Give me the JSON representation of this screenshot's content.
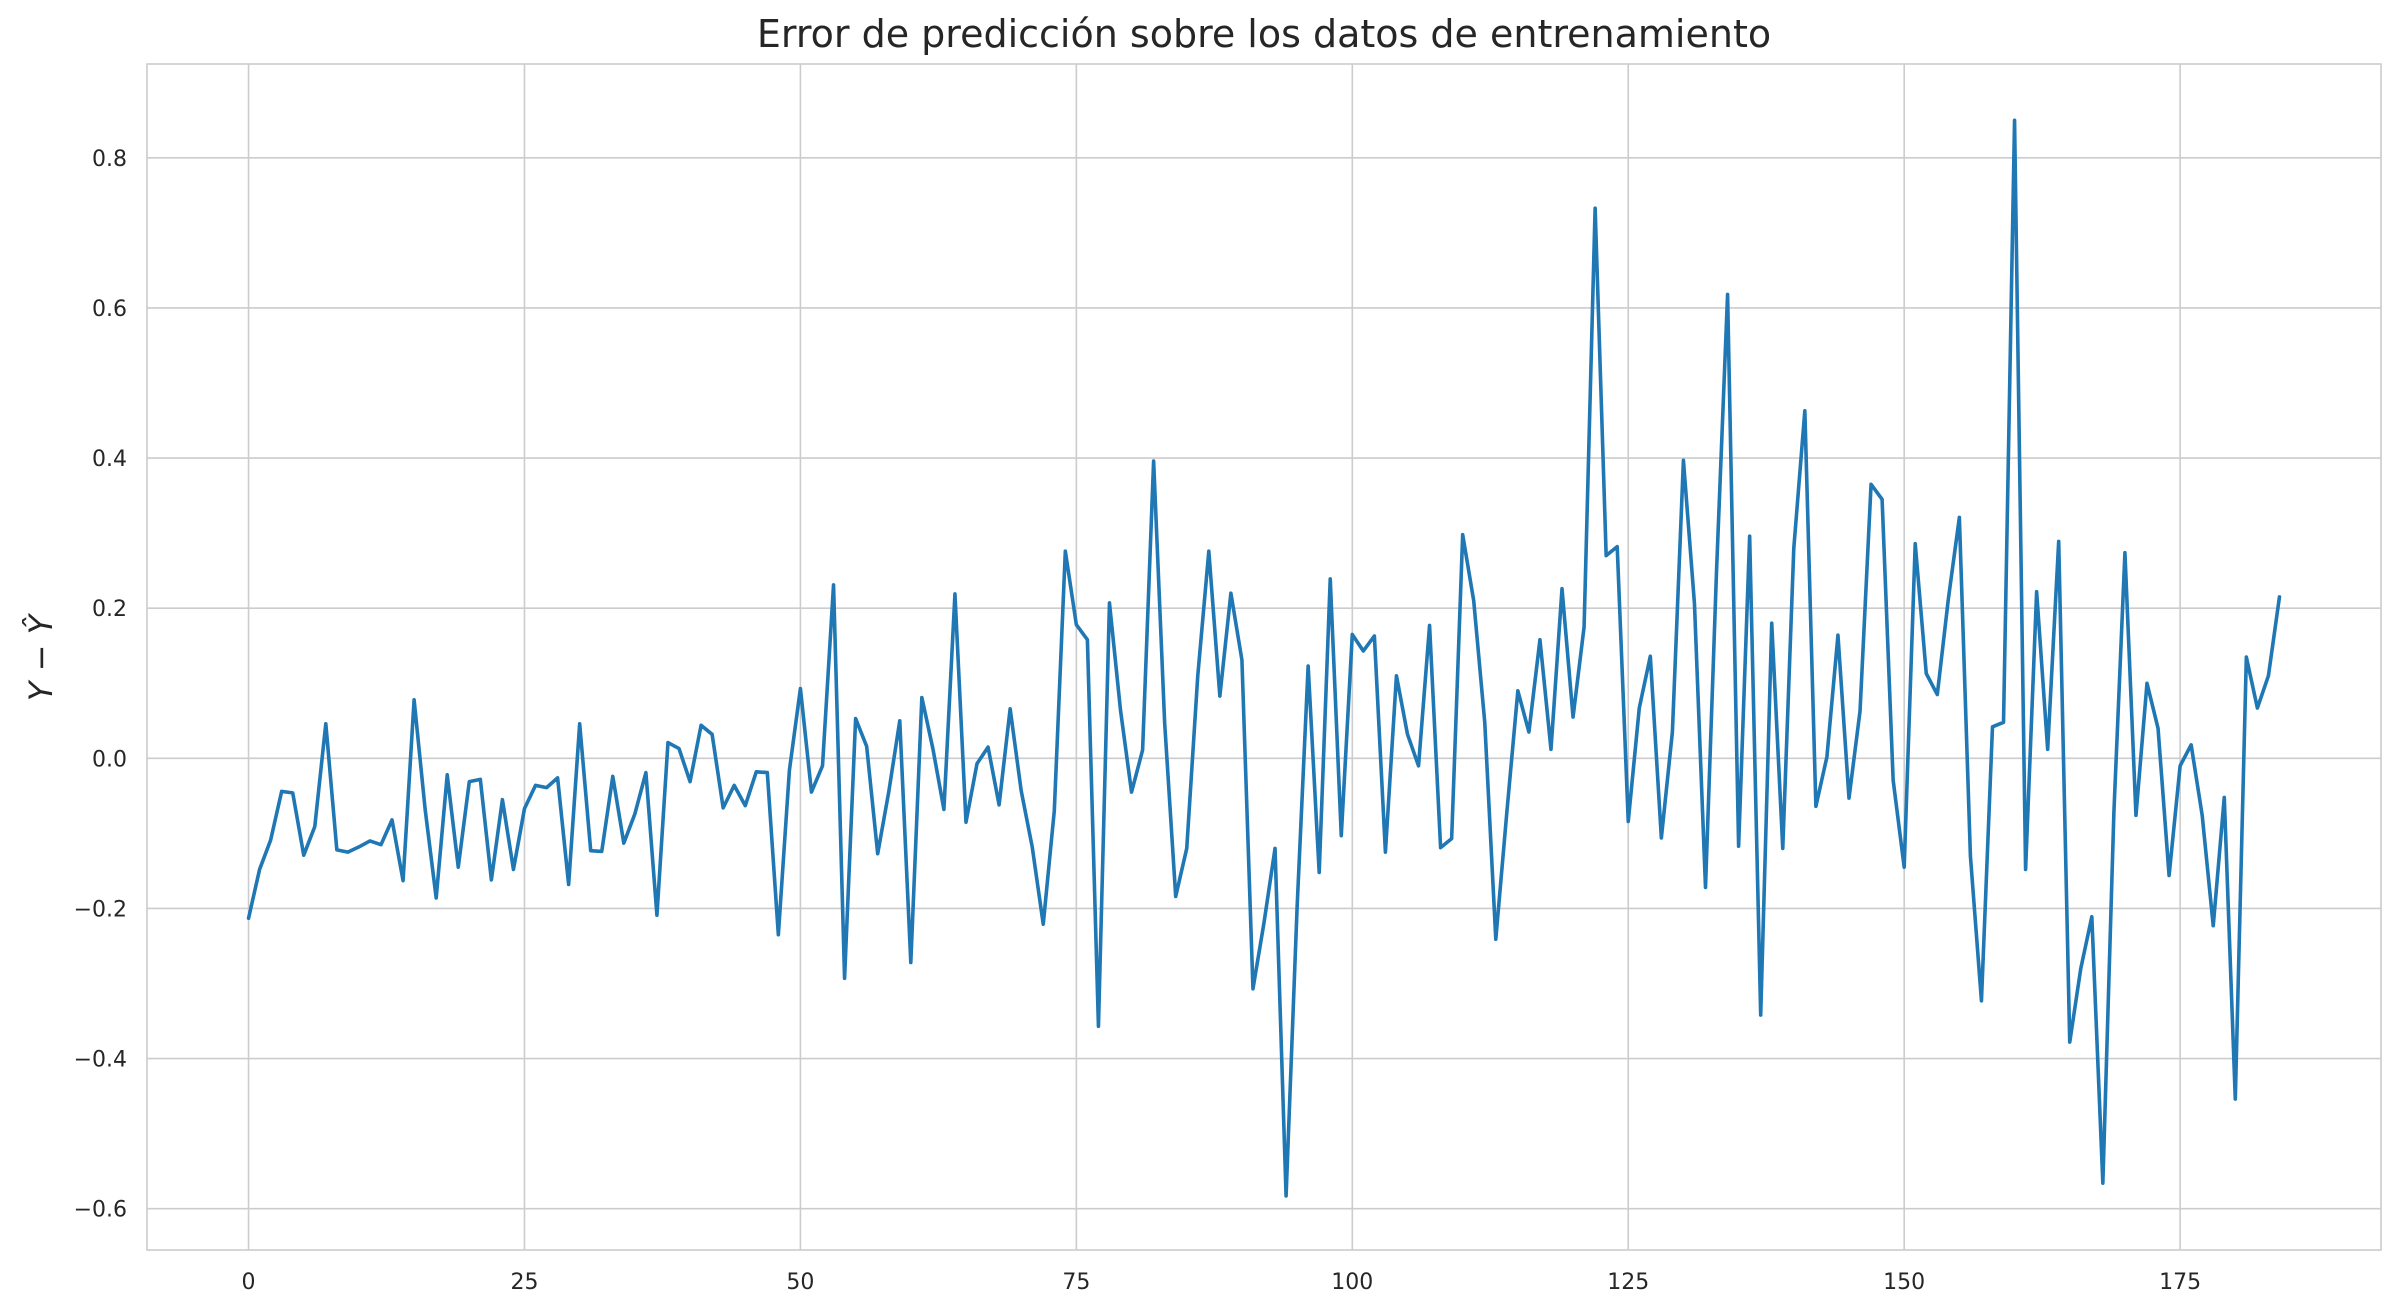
{
  "chart_data": {
    "type": "line",
    "title": "Error de predicción sobre los datos de entrenamiento",
    "xlabel": "",
    "ylabel": "Y − Ŷ",
    "xlim": [
      -9.2,
      193.2
    ],
    "ylim": [
      -0.655,
      0.925
    ],
    "xticks": [
      0,
      25,
      50,
      75,
      100,
      125,
      150,
      175
    ],
    "xtick_labels": [
      "0",
      "25",
      "50",
      "75",
      "100",
      "125",
      "150",
      "175"
    ],
    "yticks": [
      -0.6,
      -0.4,
      -0.2,
      0.0,
      0.2,
      0.4,
      0.6,
      0.8
    ],
    "ytick_labels": [
      "−0.6",
      "−0.4",
      "−0.2",
      "0.0",
      "0.2",
      "0.4",
      "0.6",
      "0.8"
    ],
    "grid": true,
    "colors": {
      "line": "#1f77b4",
      "grid": "#cccccc",
      "background": "#ffffff"
    },
    "series": [
      {
        "x_start": 0,
        "x_step": 1,
        "values": [
          -0.213,
          -0.148,
          -0.109,
          -0.044,
          -0.046,
          -0.129,
          -0.091,
          0.046,
          -0.122,
          -0.125,
          -0.118,
          -0.11,
          -0.115,
          -0.082,
          -0.163,
          0.078,
          -0.068,
          -0.186,
          -0.022,
          -0.145,
          -0.031,
          -0.028,
          -0.162,
          -0.055,
          -0.148,
          -0.067,
          -0.036,
          -0.039,
          -0.026,
          -0.168,
          0.046,
          -0.123,
          -0.124,
          -0.024,
          -0.113,
          -0.074,
          -0.019,
          -0.209,
          0.021,
          0.013,
          -0.031,
          0.044,
          0.032,
          -0.066,
          -0.036,
          -0.063,
          -0.018,
          -0.019,
          -0.235,
          -0.016,
          0.093,
          -0.045,
          -0.01,
          0.231,
          -0.293,
          0.053,
          0.016,
          -0.127,
          -0.045,
          0.05,
          -0.272,
          0.081,
          0.013,
          -0.068,
          0.219,
          -0.085,
          -0.007,
          0.015,
          -0.062,
          0.066,
          -0.043,
          -0.118,
          -0.221,
          -0.07,
          0.276,
          0.178,
          0.158,
          -0.357,
          0.207,
          0.064,
          -0.045,
          0.011,
          0.396,
          0.047,
          -0.184,
          -0.12,
          0.11,
          0.276,
          0.083,
          0.22,
          0.131,
          -0.307,
          -0.219,
          -0.12,
          -0.583,
          -0.198,
          0.123,
          -0.152,
          0.239,
          -0.103,
          0.165,
          0.143,
          0.163,
          -0.125,
          0.11,
          0.032,
          -0.01,
          0.177,
          -0.119,
          -0.107,
          0.298,
          0.21,
          0.048,
          -0.241,
          -0.072,
          0.09,
          0.035,
          0.158,
          0.012,
          0.226,
          0.055,
          0.175,
          0.733,
          0.27,
          0.282,
          -0.084,
          0.067,
          0.136,
          -0.106,
          0.035,
          0.397,
          0.206,
          -0.172,
          0.25,
          0.618,
          -0.117,
          0.296,
          -0.342,
          0.18,
          -0.12,
          0.28,
          0.463,
          -0.064,
          0.002,
          0.164,
          -0.053,
          0.063,
          0.365,
          0.345,
          -0.029,
          -0.145,
          0.286,
          0.113,
          0.085,
          0.212,
          0.321,
          -0.13,
          -0.323,
          0.042,
          0.048,
          0.85,
          -0.148,
          0.222,
          0.012,
          0.289,
          -0.378,
          -0.28,
          -0.211,
          -0.566,
          -0.072,
          0.274,
          -0.076,
          0.1,
          0.04,
          -0.156,
          -0.01,
          0.018,
          -0.076,
          -0.223,
          -0.052,
          -0.454,
          0.135,
          0.067,
          0.11,
          0.215
        ]
      }
    ]
  }
}
